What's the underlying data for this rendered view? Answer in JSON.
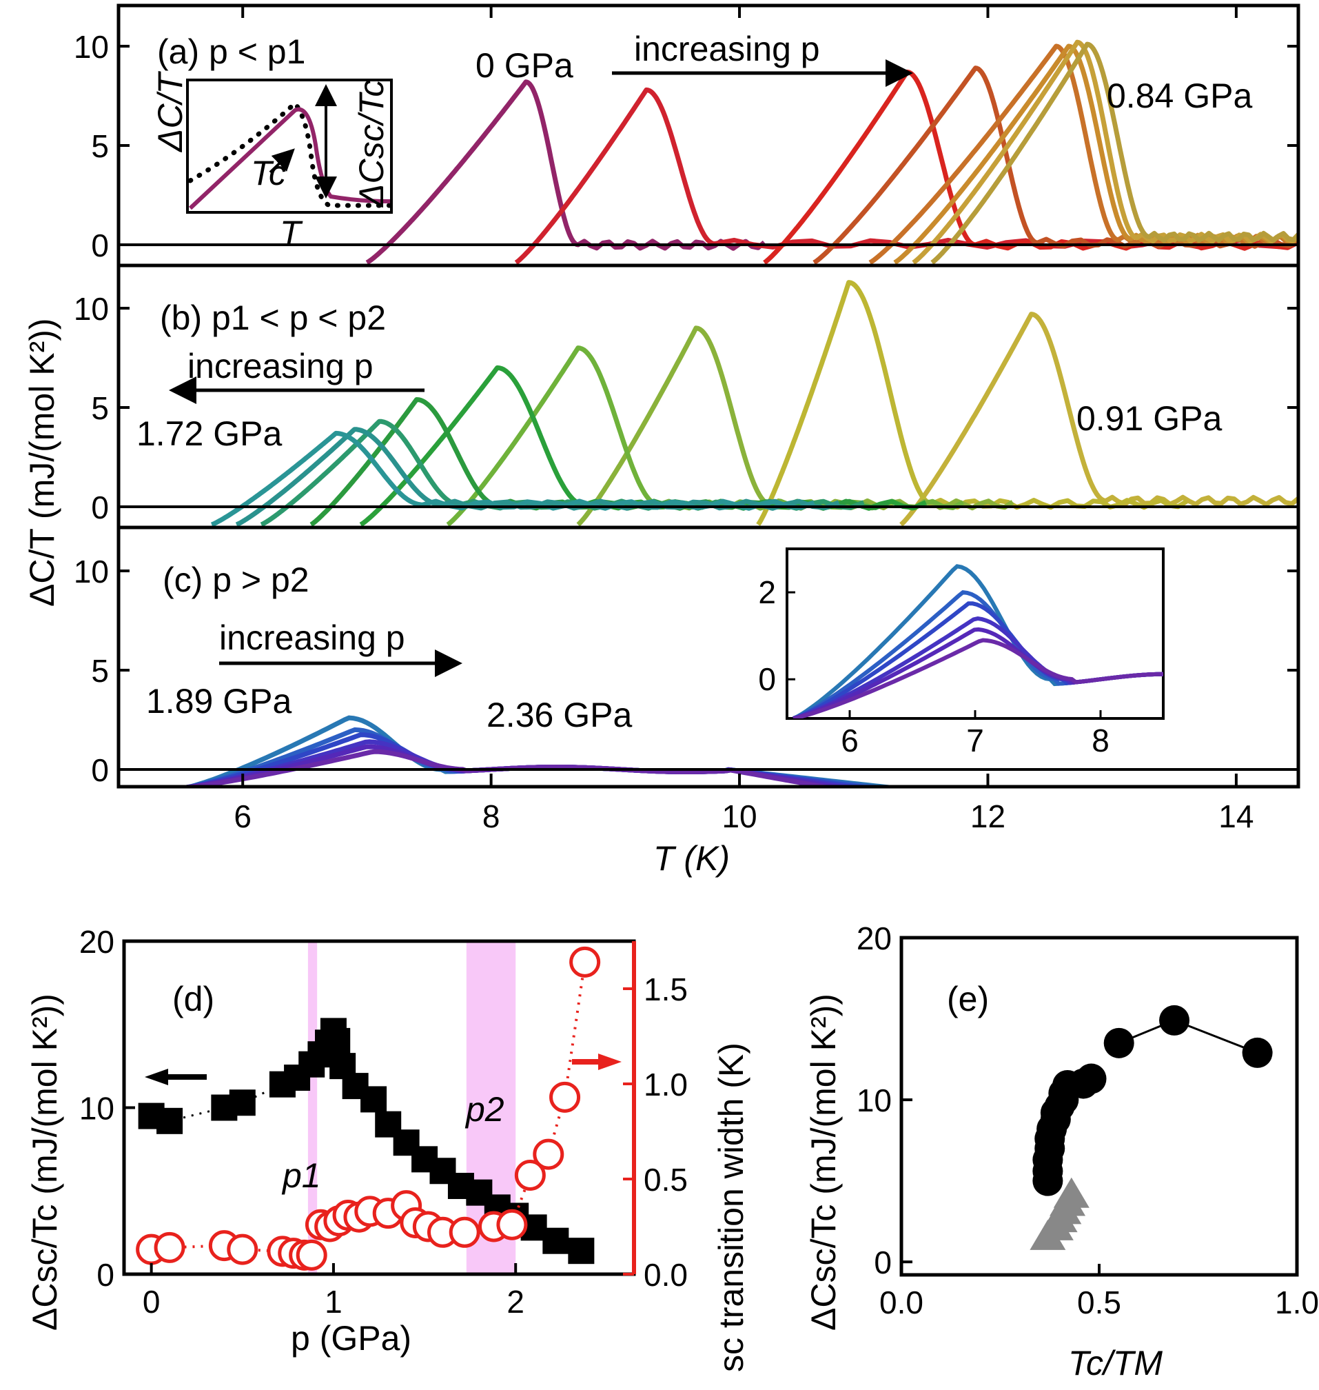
{
  "chart_data": [
    {
      "id": "a",
      "type": "line",
      "title": "(a) p < p1",
      "xlabel": "T (K)",
      "ylabel": "ΔC/T (mJ/(mol K²))",
      "xlim": [
        5,
        14.5
      ],
      "ylim": [
        -1,
        13
      ],
      "yticks": [
        0,
        5,
        10
      ],
      "annotation": "increasing p",
      "annotation_direction": "right",
      "series": [
        {
          "name": "0 GPa",
          "color": "#922468",
          "start": 7.0,
          "peak_x": 8.28,
          "peak_y": 8.2,
          "fall_end": 8.7,
          "tail_y": 0.0,
          "end": 10.2
        },
        {
          "name": "",
          "color": "#d0222e",
          "start": 8.2,
          "peak_x": 9.25,
          "peak_y": 7.8,
          "fall_end": 9.8,
          "tail_y": 0.05,
          "end": 14.5
        },
        {
          "name": "",
          "color": "#d9241f",
          "start": 10.2,
          "peak_x": 11.35,
          "peak_y": 8.7,
          "fall_end": 11.9,
          "tail_y": 0.0,
          "end": 14.5
        },
        {
          "name": "",
          "color": "#c35224",
          "start": 10.6,
          "peak_x": 11.9,
          "peak_y": 8.9,
          "fall_end": 12.4,
          "tail_y": 0.1,
          "end": 14.5
        },
        {
          "name": "",
          "color": "#c87128",
          "start": 11.05,
          "peak_x": 12.55,
          "peak_y": 10.0,
          "fall_end": 13.05,
          "tail_y": 0.25,
          "end": 14.5
        },
        {
          "name": "",
          "color": "#c98b2c",
          "start": 11.25,
          "peak_x": 12.65,
          "peak_y": 10.0,
          "fall_end": 13.15,
          "tail_y": 0.3,
          "end": 14.5
        },
        {
          "name": "",
          "color": "#c6a038",
          "start": 11.4,
          "peak_x": 12.72,
          "peak_y": 10.2,
          "fall_end": 13.2,
          "tail_y": 0.35,
          "end": 14.5
        },
        {
          "name": "0.84 GPa",
          "color": "#b69d3a",
          "start": 11.55,
          "peak_x": 12.8,
          "peak_y": 10.1,
          "fall_end": 13.3,
          "tail_y": 0.4,
          "end": 14.5
        }
      ],
      "inset": {
        "xlabel": "T",
        "ylabel": "ΔC/T",
        "annotations": [
          "Tc",
          "ΔCsc/Tc"
        ]
      }
    },
    {
      "id": "b",
      "type": "line",
      "title": "(b) p1 < p < p2",
      "ylim": [
        -1,
        13
      ],
      "yticks": [
        0,
        5,
        10
      ],
      "annotation": "increasing p",
      "annotation_direction": "left",
      "series": [
        {
          "name": "0.91 GPa",
          "color": "#c3b13a",
          "start": 11.3,
          "peak_x": 12.35,
          "peak_y": 9.7,
          "fall_end": 12.95,
          "tail_y": 0.3,
          "end": 14.5
        },
        {
          "name": "",
          "color": "#bdb633",
          "start": 10.15,
          "peak_x": 10.88,
          "peak_y": 11.3,
          "fall_end": 11.55,
          "tail_y": 0.15,
          "end": 13.6
        },
        {
          "name": "",
          "color": "#8ab23a",
          "start": 8.7,
          "peak_x": 9.65,
          "peak_y": 9.0,
          "fall_end": 10.25,
          "tail_y": 0.12,
          "end": 12.2
        },
        {
          "name": "",
          "color": "#6fb23a",
          "start": 7.65,
          "peak_x": 8.7,
          "peak_y": 8.0,
          "fall_end": 9.35,
          "tail_y": 0.1,
          "end": 11.8
        },
        {
          "name": "",
          "color": "#2aa03a",
          "start": 6.95,
          "peak_x": 8.05,
          "peak_y": 7.0,
          "fall_end": 8.75,
          "tail_y": 0.1,
          "end": 11.5
        },
        {
          "name": "",
          "color": "#2b9a3e",
          "start": 6.55,
          "peak_x": 7.4,
          "peak_y": 5.4,
          "fall_end": 8.05,
          "tail_y": 0.1,
          "end": 11.2
        },
        {
          "name": "",
          "color": "#2c9a6e",
          "start": 6.15,
          "peak_x": 7.1,
          "peak_y": 4.3,
          "fall_end": 7.75,
          "tail_y": 0.1,
          "end": 11.0
        },
        {
          "name": "",
          "color": "#2a928e",
          "start": 5.95,
          "peak_x": 6.9,
          "peak_y": 3.9,
          "fall_end": 7.6,
          "tail_y": 0.1,
          "end": 10.8
        },
        {
          "name": "1.72 GPa",
          "color": "#2a9596",
          "start": 5.75,
          "peak_x": 6.75,
          "peak_y": 3.7,
          "fall_end": 7.45,
          "tail_y": 0.1,
          "end": 10.6
        }
      ]
    },
    {
      "id": "c",
      "type": "line",
      "title": "(c) p > p2",
      "xlabel": "T (K)",
      "ylim": [
        -1,
        13
      ],
      "yticks": [
        0,
        5,
        10
      ],
      "xticks": [
        6,
        8,
        10,
        12,
        14
      ],
      "annotation": "increasing p",
      "annotation_direction": "right",
      "series": [
        {
          "name": "1.89 GPa",
          "color": "#2878b4",
          "peak_x": 6.85,
          "peak_y": 2.6,
          "end": 11.2
        },
        {
          "name": "",
          "color": "#2c5fc4",
          "peak_x": 6.9,
          "peak_y": 2.0,
          "end": 11.1
        },
        {
          "name": "",
          "color": "#2f46c6",
          "peak_x": 6.95,
          "peak_y": 1.75,
          "end": 11.0
        },
        {
          "name": "",
          "color": "#4533c2",
          "peak_x": 7.0,
          "peak_y": 1.4,
          "end": 10.9
        },
        {
          "name": "",
          "color": "#5528b8",
          "peak_x": 7.0,
          "peak_y": 1.15,
          "end": 10.8
        },
        {
          "name": "2.36 GPa",
          "color": "#6a2aa8",
          "peak_x": 7.05,
          "peak_y": 0.9,
          "end": 10.7
        }
      ],
      "inset": {
        "xlim": [
          5.5,
          8.5
        ],
        "ylim": [
          -0.9,
          3.0
        ],
        "xticks": [
          6,
          7,
          8
        ],
        "yticks": [
          0,
          2
        ]
      }
    },
    {
      "id": "d",
      "type": "scatter",
      "title": "(d)",
      "xlabel": "p (GPa)",
      "ylabel": "ΔCsc/Tc (mJ/(mol K²))",
      "y2label": "sc transition width (K)",
      "xlim": [
        -0.15,
        2.65
      ],
      "ylim": [
        0,
        20
      ],
      "y2lim": [
        0,
        1.75
      ],
      "xticks": [
        0,
        1,
        2
      ],
      "yticks": [
        0,
        10,
        20
      ],
      "y2ticks": [
        0.0,
        0.5,
        1.0,
        1.5
      ],
      "bands": [
        {
          "label": "p1",
          "x0": 0.86,
          "x1": 0.91
        },
        {
          "label": "p2",
          "x0": 1.73,
          "x1": 2.0
        }
      ],
      "series": [
        {
          "name": "ΔCsc/Tc",
          "color": "#000000",
          "marker": "square",
          "x": [
            0.0,
            0.1,
            0.4,
            0.5,
            0.72,
            0.8,
            0.88,
            0.93,
            0.97,
            1.0,
            1.02,
            1.05,
            1.12,
            1.22,
            1.3,
            1.4,
            1.5,
            1.6,
            1.7,
            1.8,
            1.9,
            2.0,
            2.1,
            2.22,
            2.36
          ],
          "y": [
            9.5,
            9.2,
            10.0,
            10.3,
            11.4,
            11.8,
            12.6,
            13.2,
            13.9,
            14.6,
            14.0,
            12.5,
            11.3,
            10.5,
            9.0,
            7.9,
            6.9,
            6.2,
            5.3,
            4.9,
            4.0,
            3.5,
            2.8,
            2.0,
            1.4
          ]
        },
        {
          "name": "sc transition width",
          "color": "#e8221d",
          "marker": "open-circle",
          "x": [
            0.0,
            0.1,
            0.4,
            0.5,
            0.72,
            0.78,
            0.84,
            0.88,
            0.93,
            0.98,
            1.03,
            1.08,
            1.14,
            1.2,
            1.3,
            1.4,
            1.45,
            1.52,
            1.6,
            1.72,
            1.88,
            1.98,
            2.08,
            2.18,
            2.27,
            2.38
          ],
          "y": [
            0.13,
            0.14,
            0.15,
            0.13,
            0.12,
            0.11,
            0.1,
            0.1,
            0.26,
            0.25,
            0.28,
            0.31,
            0.3,
            0.33,
            0.32,
            0.36,
            0.27,
            0.25,
            0.22,
            0.22,
            0.25,
            0.26,
            0.52,
            0.63,
            0.93,
            1.64
          ]
        }
      ]
    },
    {
      "id": "e",
      "type": "scatter",
      "title": "(e)",
      "xlabel": "Tc/TM",
      "ylabel": "ΔCsc/Tc (mJ/(mol K²))",
      "xlim": [
        0.0,
        1.0
      ],
      "ylim": [
        -0.8,
        20
      ],
      "xticks": [
        0.0,
        0.5,
        1.0
      ],
      "yticks": [
        0,
        10,
        20
      ],
      "series": [
        {
          "name": "",
          "color": "#000000",
          "marker": "filled-circle",
          "x": [
            0.37,
            0.37,
            0.37,
            0.375,
            0.375,
            0.38,
            0.39,
            0.39,
            0.4,
            0.41,
            0.41,
            0.42,
            0.46,
            0.48,
            0.55,
            0.69,
            0.9
          ],
          "y": [
            5.0,
            5.6,
            6.3,
            7.0,
            7.6,
            8.2,
            8.8,
            9.2,
            9.6,
            10.0,
            10.4,
            10.9,
            11.0,
            11.3,
            13.5,
            14.9,
            12.9
          ]
        },
        {
          "name": "",
          "color": "#888888",
          "marker": "triangle",
          "x": [
            0.37,
            0.39,
            0.4,
            0.41,
            0.42,
            0.43
          ],
          "y": [
            1.5,
            2.1,
            2.6,
            3.1,
            3.6,
            4.1
          ]
        }
      ]
    }
  ]
}
